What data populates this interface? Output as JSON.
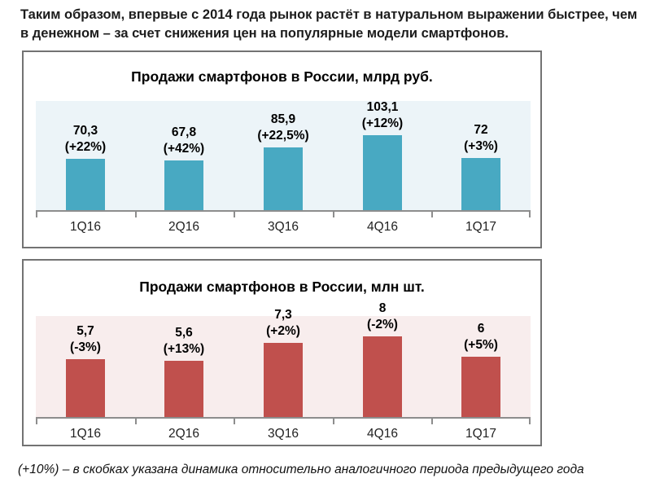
{
  "page": {
    "header": "Таким образом, впервые с 2014 года рынок растёт в натуральном выражении быстрее, чем в денежном – за счет снижения цен на популярные модели смартфонов.",
    "footnote": "(+10%) – в скобках указана динамика относительно аналогичного периода предыдущего года"
  },
  "chart_data": [
    {
      "type": "bar",
      "title": "Продажи смартфонов в России, млрд руб.",
      "categories": [
        "1Q16",
        "2Q16",
        "3Q16",
        "4Q16",
        "1Q17"
      ],
      "values": [
        70.3,
        67.8,
        85.9,
        103.1,
        72
      ],
      "labels": [
        [
          "70,3",
          "(+22%)"
        ],
        [
          "67,8",
          "(+42%)"
        ],
        [
          "85,9",
          "(+22,5%)"
        ],
        [
          "103,1",
          "(+12%)"
        ],
        [
          "72",
          "(+3%)"
        ]
      ],
      "xlabel": "",
      "ylabel": "",
      "ylim": [
        0,
        150
      ],
      "grid": false,
      "legend": "none",
      "bar_color": "#48A9C2",
      "plot_bg": "#ECF4F8"
    },
    {
      "type": "bar",
      "title": "Продажи смартфонов в России, млн шт.",
      "categories": [
        "1Q16",
        "2Q16",
        "3Q16",
        "4Q16",
        "1Q17"
      ],
      "values": [
        5.7,
        5.6,
        7.3,
        8,
        6
      ],
      "labels": [
        [
          "5,7",
          "(-3%)"
        ],
        [
          "5,6",
          "(+13%)"
        ],
        [
          "7,3",
          "(+2%)"
        ],
        [
          "8",
          "(-2%)"
        ],
        [
          "6",
          "(+5%)"
        ]
      ],
      "xlabel": "",
      "ylabel": "",
      "ylim": [
        0,
        10
      ],
      "grid": false,
      "legend": "none",
      "bar_color": "#C0504D",
      "plot_bg": "#F8EDED"
    }
  ]
}
